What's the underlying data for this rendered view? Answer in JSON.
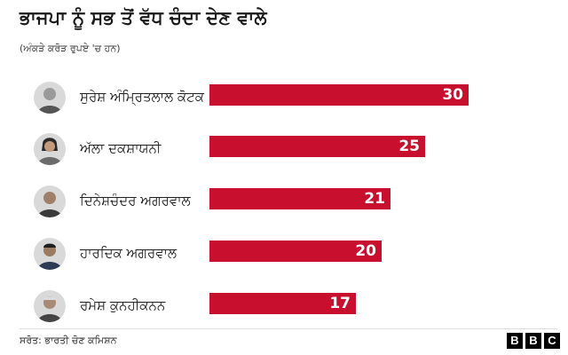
{
  "chart_data": {
    "type": "bar",
    "orientation": "horizontal",
    "title": "ਭਾਜਪਾ ਨੂੰ ਸਭ ਤੋਂ ਵੱਧ ਚੰਦਾ ਦੇਣ ਵਾਲੇ",
    "subtitle": "(ਅੰਕੜੇ ਕਰੋੜ ਰੁਪਏ 'ਚ ਹਨ)",
    "categories": [
      "ਸੁਰੇਸ਼ ਅੰਮ੍ਰਿਤਲਾਲ ਕੋਟਕ",
      "ਅੱਲਾ ਦਕਸ਼ਾਯਨੀ",
      "ਦਿਨੇਸ਼ਚੰਦਰ ਅਗਰਵਾਲ",
      "ਹਾਰਦਿਕ ਅਗਰਵਾਲ",
      "ਰਮੇਸ਼ ਕੁਨਹੀਕਨਨ"
    ],
    "values": [
      30,
      25,
      21,
      20,
      17
    ],
    "xlim": [
      0,
      36
    ],
    "grid": false,
    "legend": "none",
    "bar_color": "#c8102e"
  },
  "footer": {
    "source": "ਸਰੋਤ: ਭਾਰਤੀ ਚੋਣ ਕਮਿਸ਼ਨ",
    "logo_letters": [
      "B",
      "B",
      "C"
    ]
  }
}
